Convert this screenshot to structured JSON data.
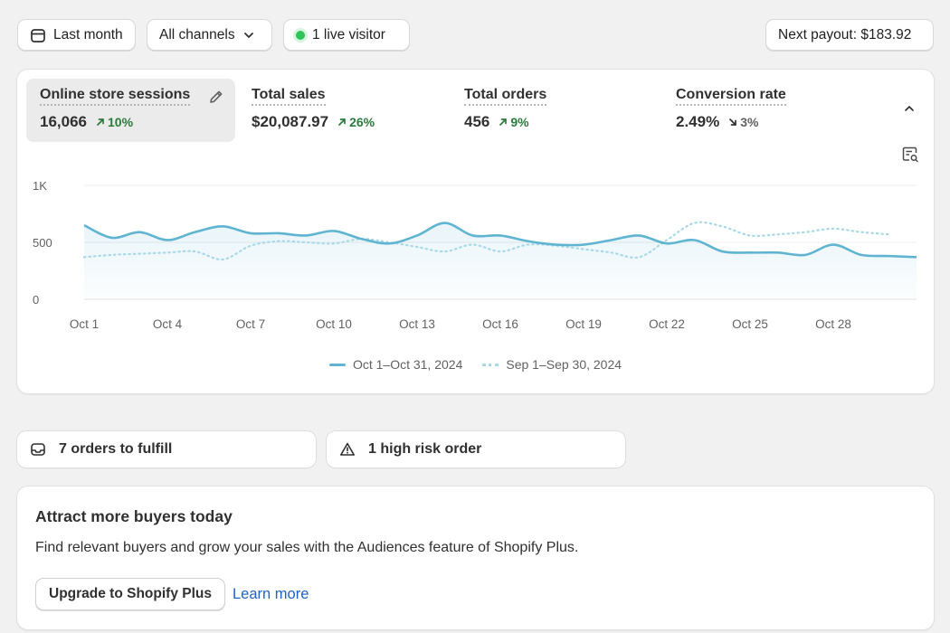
{
  "toolbar": {
    "date_range": "Last month",
    "channels": "All channels",
    "live_visitor": "1 live visitor",
    "payout": "Next payout: $183.92"
  },
  "metrics": [
    {
      "label": "Online store sessions",
      "value": "16,066",
      "change": "10%",
      "direction": "up",
      "active": true
    },
    {
      "label": "Total sales",
      "value": "$20,087.97",
      "change": "26%",
      "direction": "up"
    },
    {
      "label": "Total orders",
      "value": "456",
      "change": "9%",
      "direction": "up"
    },
    {
      "label": "Conversion rate",
      "value": "2.49%",
      "change": "3%",
      "direction": "down"
    }
  ],
  "chart_data": {
    "type": "line",
    "x": [
      "Oct 1",
      "Oct 2",
      "Oct 3",
      "Oct 4",
      "Oct 5",
      "Oct 6",
      "Oct 7",
      "Oct 8",
      "Oct 9",
      "Oct 10",
      "Oct 11",
      "Oct 12",
      "Oct 13",
      "Oct 14",
      "Oct 15",
      "Oct 16",
      "Oct 17",
      "Oct 18",
      "Oct 19",
      "Oct 20",
      "Oct 21",
      "Oct 22",
      "Oct 23",
      "Oct 24",
      "Oct 25",
      "Oct 26",
      "Oct 27",
      "Oct 28",
      "Oct 29",
      "Oct 30",
      "Oct 31"
    ],
    "tick_labels": [
      "Oct 1",
      "Oct 4",
      "Oct 7",
      "Oct 10",
      "Oct 13",
      "Oct 16",
      "Oct 19",
      "Oct 22",
      "Oct 25",
      "Oct 28"
    ],
    "y_ticks": [
      "0",
      "500",
      "1K"
    ],
    "ylim": [
      0,
      1000
    ],
    "series": [
      {
        "name": "Oct 1–Oct 31, 2024",
        "style": "solid",
        "color": "#5fb4d2",
        "values": [
          650,
          540,
          590,
          520,
          590,
          640,
          580,
          580,
          560,
          600,
          530,
          490,
          560,
          670,
          560,
          560,
          510,
          480,
          480,
          520,
          560,
          490,
          520,
          420,
          410,
          410,
          390,
          480,
          390,
          380,
          370
        ]
      },
      {
        "name": "Sep 1–Sep 30, 2024",
        "style": "dotted",
        "color": "#a9d8e7",
        "values": [
          370,
          390,
          400,
          410,
          420,
          350,
          470,
          510,
          500,
          490,
          530,
          500,
          460,
          420,
          480,
          420,
          480,
          470,
          440,
          410,
          370,
          520,
          670,
          640,
          560,
          570,
          590,
          620,
          590,
          570,
          650
        ]
      }
    ],
    "grid": true,
    "legend_position": "bottom-center"
  },
  "tasks": {
    "fulfill": "7 orders to fulfill",
    "risk": "1 high risk order"
  },
  "promo": {
    "title": "Attract more buyers today",
    "body": "Find relevant buyers and grow your sales with the Audiences feature of Shopify Plus.",
    "button": "Upgrade to Shopify Plus",
    "link": "Learn more"
  }
}
